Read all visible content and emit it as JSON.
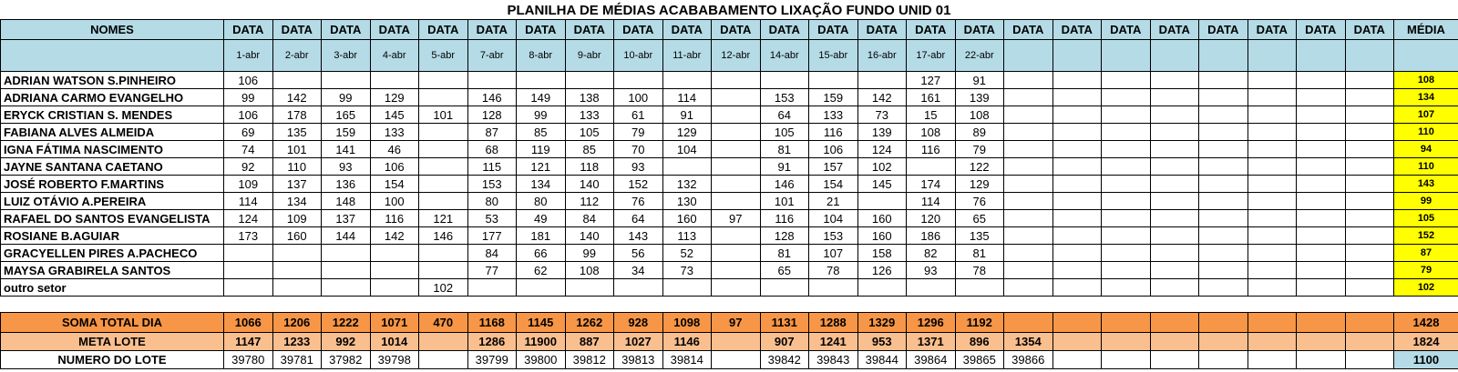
{
  "title": "PLANILHA DE MÉDIAS ACABABAMENTO LIXAÇÃO FUNDO UNID 01",
  "header": {
    "names_label": "NOMES",
    "date_label": "DATA",
    "average_label": "MÉDIA",
    "dates": [
      "1-abr",
      "2-abr",
      "3-abr",
      "4-abr",
      "5-abr",
      "7-abr",
      "8-abr",
      "9-abr",
      "10-abr",
      "11-abr",
      "12-abr",
      "14-abr",
      "15-abr",
      "16-abr",
      "17-abr",
      "22-abr",
      "",
      "",
      "",
      "",
      "",
      "",
      "",
      ""
    ]
  },
  "rows": [
    {
      "name": "ADRIAN WATSON S.PINHEIRO",
      "values": [
        "106",
        "",
        "",
        "",
        "",
        "",
        "",
        "",
        "",
        "",
        "",
        "",
        "",
        "",
        "127",
        "91",
        "",
        "",
        "",
        "",
        "",
        "",
        "",
        ""
      ],
      "avg": "108"
    },
    {
      "name": "ADRIANA CARMO EVANGELHO",
      "values": [
        "99",
        "142",
        "99",
        "129",
        "",
        "146",
        "149",
        "138",
        "100",
        "114",
        "",
        "153",
        "159",
        "142",
        "161",
        "139",
        "",
        "",
        "",
        "",
        "",
        "",
        "",
        ""
      ],
      "avg": "134"
    },
    {
      "name": "ERYCK CRISTIAN S. MENDES",
      "values": [
        "106",
        "178",
        "165",
        "145",
        "101",
        "128",
        "99",
        "133",
        "61",
        "91",
        "",
        "64",
        "133",
        "73",
        "15",
        "108",
        "",
        "",
        "",
        "",
        "",
        "",
        "",
        ""
      ],
      "avg": "107"
    },
    {
      "name": "FABIANA ALVES ALMEIDA",
      "values": [
        "69",
        "135",
        "159",
        "133",
        "",
        "87",
        "85",
        "105",
        "79",
        "129",
        "",
        "105",
        "116",
        "139",
        "108",
        "89",
        "",
        "",
        "",
        "",
        "",
        "",
        "",
        ""
      ],
      "avg": "110"
    },
    {
      "name": "IGNA FÁTIMA NASCIMENTO",
      "values": [
        "74",
        "101",
        "141",
        "46",
        "",
        "68",
        "119",
        "85",
        "70",
        "104",
        "",
        "81",
        "106",
        "124",
        "116",
        "79",
        "",
        "",
        "",
        "",
        "",
        "",
        "",
        ""
      ],
      "avg": "94"
    },
    {
      "name": "JAYNE SANTANA CAETANO",
      "values": [
        "92",
        "110",
        "93",
        "106",
        "",
        "115",
        "121",
        "118",
        "93",
        "",
        "",
        "91",
        "157",
        "102",
        "",
        "122",
        "",
        "",
        "",
        "",
        "",
        "",
        "",
        ""
      ],
      "avg": "110"
    },
    {
      "name": "JOSÉ ROBERTO F.MARTINS",
      "values": [
        "109",
        "137",
        "136",
        "154",
        "",
        "153",
        "134",
        "140",
        "152",
        "132",
        "",
        "146",
        "154",
        "145",
        "174",
        "129",
        "",
        "",
        "",
        "",
        "",
        "",
        "",
        ""
      ],
      "avg": "143"
    },
    {
      "name": "LUIZ OTÁVIO A.PEREIRA",
      "values": [
        "114",
        "134",
        "148",
        "100",
        "",
        "80",
        "80",
        "112",
        "76",
        "130",
        "",
        "101",
        "21",
        "",
        "114",
        "76",
        "",
        "",
        "",
        "",
        "",
        "",
        "",
        ""
      ],
      "avg": "99"
    },
    {
      "name": "RAFAEL DO SANTOS EVANGELISTA",
      "values": [
        "124",
        "109",
        "137",
        "116",
        "121",
        "53",
        "49",
        "84",
        "64",
        "160",
        "97",
        "116",
        "104",
        "160",
        "120",
        "65",
        "",
        "",
        "",
        "",
        "",
        "",
        "",
        ""
      ],
      "avg": "105"
    },
    {
      "name": "ROSIANE B.AGUIAR",
      "values": [
        "173",
        "160",
        "144",
        "142",
        "146",
        "177",
        "181",
        "140",
        "143",
        "113",
        "",
        "128",
        "153",
        "160",
        "186",
        "135",
        "",
        "",
        "",
        "",
        "",
        "",
        "",
        ""
      ],
      "avg": "152"
    },
    {
      "name": "GRACYELLEN PIRES A.PACHECO",
      "values": [
        "",
        "",
        "",
        "",
        "",
        "84",
        "66",
        "99",
        "56",
        "52",
        "",
        "81",
        "107",
        "158",
        "82",
        "81",
        "",
        "",
        "",
        "",
        "",
        "",
        "",
        ""
      ],
      "avg": "87"
    },
    {
      "name": "MAYSA GRABIRELA SANTOS",
      "values": [
        "",
        "",
        "",
        "",
        "",
        "77",
        "62",
        "108",
        "34",
        "73",
        "",
        "65",
        "78",
        "126",
        "93",
        "78",
        "",
        "",
        "",
        "",
        "",
        "",
        "",
        ""
      ],
      "avg": "79"
    },
    {
      "name": "outro setor",
      "values": [
        "",
        "",
        "",
        "",
        "102",
        "",
        "",
        "",
        "",
        "",
        "",
        "",
        "",
        "",
        "",
        "",
        "",
        "",
        "",
        "",
        "",
        "",
        "",
        ""
      ],
      "avg": "102"
    }
  ],
  "totals": {
    "label": "SOMA TOTAL DIA",
    "values": [
      "1066",
      "1206",
      "1222",
      "1071",
      "470",
      "1168",
      "1145",
      "1262",
      "928",
      "1098",
      "97",
      "1131",
      "1288",
      "1329",
      "1296",
      "1192",
      "",
      "",
      "",
      "",
      "",
      "",
      "",
      ""
    ],
    "avg": "1428"
  },
  "meta": {
    "label": "META LOTE",
    "values": [
      "1147",
      "1233",
      "992",
      "1014",
      "",
      "1286",
      "11900",
      "887",
      "1027",
      "1146",
      "",
      "907",
      "1241",
      "953",
      "1371",
      "896",
      "1354",
      "",
      "",
      "",
      "",
      "",
      "",
      ""
    ],
    "avg": "1824"
  },
  "lote": {
    "label": "NUMERO DO LOTE",
    "values": [
      "39780",
      "39781",
      "37982",
      "39798",
      "",
      "39799",
      "39800",
      "39812",
      "39813",
      "39814",
      "",
      "39842",
      "39843",
      "39844",
      "39864",
      "39865",
      "39866",
      "",
      "",
      "",
      "",
      "",
      "",
      ""
    ],
    "avg": "1100"
  },
  "colors": {
    "header_bg": "#b4dbe6",
    "average_bg": "#ffff00",
    "total_bg": "#f79646",
    "meta_bg": "#fabf8f",
    "lote_avg_bg": "#b4dbe6"
  }
}
